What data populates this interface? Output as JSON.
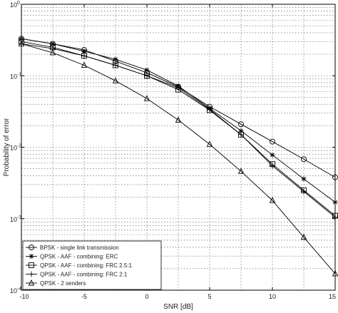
{
  "chart_data": {
    "type": "line",
    "title": "",
    "xlabel": "SNR [dB]",
    "ylabel": "Probability of error",
    "xlim": [
      -10,
      15
    ],
    "ylim": [
      0.0001,
      1
    ],
    "yscale": "log",
    "grid": true,
    "legend_position": "bottom-left",
    "x_ticks": [
      "-10",
      "-5",
      "0",
      "5",
      "10",
      "15"
    ],
    "y_ticks": [
      {
        "base": "10",
        "exp": "0",
        "value": 1
      },
      {
        "base": "10",
        "exp": "-1",
        "value": 0.1
      },
      {
        "base": "10",
        "exp": "-2",
        "value": 0.01
      },
      {
        "base": "10",
        "exp": "-3",
        "value": 0.001
      },
      {
        "base": "10",
        "exp": "-4",
        "value": 0.0001
      }
    ],
    "x": [
      -10,
      -7.5,
      -5,
      -2.5,
      0,
      2.5,
      5,
      7.5,
      10,
      12.5,
      15
    ],
    "series": [
      {
        "name": "BPSK - single link transmission",
        "marker": "circle",
        "values": [
          0.33,
          0.28,
          0.23,
          0.16,
          0.11,
          0.07,
          0.037,
          0.021,
          0.012,
          0.0068,
          0.0038
        ]
      },
      {
        "name": "QPSK - AAF - combining: ERC",
        "marker": "star",
        "values": [
          0.33,
          0.28,
          0.22,
          0.17,
          0.12,
          0.072,
          0.035,
          0.017,
          0.0078,
          0.0036,
          0.0017
        ]
      },
      {
        "name": "QPSK - AAF - combining: FRC 2.5:1",
        "marker": "square",
        "values": [
          0.3,
          0.25,
          0.19,
          0.14,
          0.1,
          0.064,
          0.033,
          0.015,
          0.0058,
          0.0025,
          0.0011
        ]
      },
      {
        "name": "QPSK - AAF - combining: FRC 2:1",
        "marker": "plus",
        "values": [
          0.28,
          0.24,
          0.19,
          0.14,
          0.1,
          0.068,
          0.034,
          0.015,
          0.0055,
          0.0024,
          0.00105
        ]
      },
      {
        "name": "QPSK - 2 senders",
        "marker": "triangle",
        "values": [
          0.28,
          0.21,
          0.14,
          0.085,
          0.048,
          0.024,
          0.011,
          0.0046,
          0.0018,
          0.00055,
          0.00017
        ]
      }
    ]
  }
}
